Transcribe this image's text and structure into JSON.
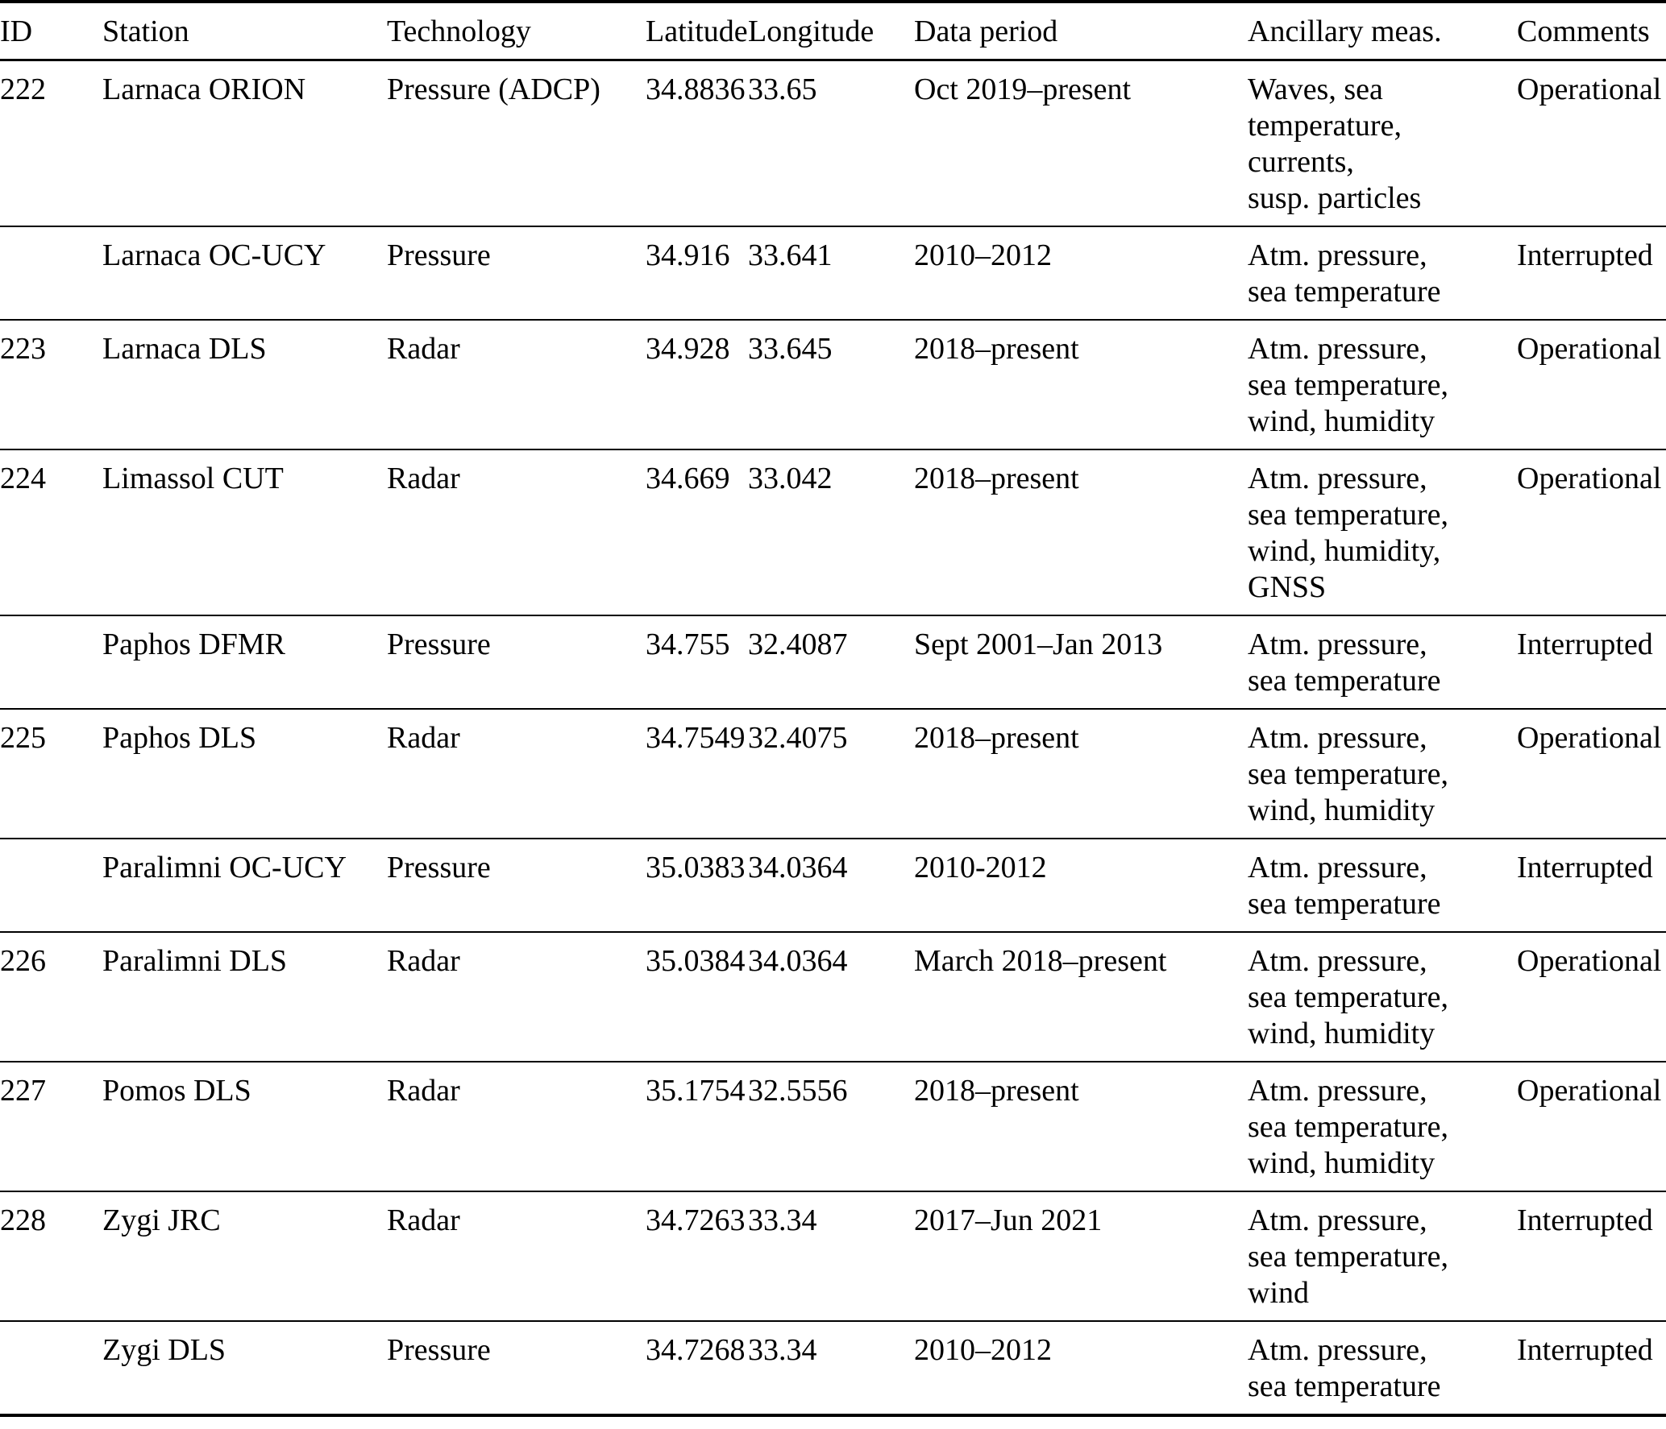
{
  "table": {
    "columns": [
      {
        "label": "ID"
      },
      {
        "label": "Station"
      },
      {
        "label": "Technology"
      },
      {
        "label": "Latitude"
      },
      {
        "label": "Longitude"
      },
      {
        "label": "Data period"
      },
      {
        "label": "Ancillary meas."
      },
      {
        "label": "Comments"
      }
    ],
    "rows": [
      {
        "id": "222",
        "station": "Larnaca ORION",
        "technology": "Pressure (ADCP)",
        "latitude": "34.8836",
        "longitude": "33.65",
        "data_period": "Oct 2019–present",
        "ancillary": "Waves, sea\ntemperature,\ncurrents,\nsusp. particles",
        "comments": "Operational"
      },
      {
        "id": "",
        "station": "Larnaca OC-UCY",
        "technology": "Pressure",
        "latitude": "34.916",
        "longitude": "33.641",
        "data_period": "2010–2012",
        "ancillary": "Atm. pressure,\nsea temperature",
        "comments": "Interrupted"
      },
      {
        "id": "223",
        "station": "Larnaca DLS",
        "technology": "Radar",
        "latitude": "34.928",
        "longitude": "33.645",
        "data_period": "2018–present",
        "ancillary": "Atm. pressure,\nsea temperature,\nwind, humidity",
        "comments": "Operational"
      },
      {
        "id": "224",
        "station": "Limassol CUT",
        "technology": "Radar",
        "latitude": "34.669",
        "longitude": "33.042",
        "data_period": "2018–present",
        "ancillary": "Atm. pressure,\nsea temperature,\nwind, humidity,\nGNSS",
        "comments": "Operational"
      },
      {
        "id": "",
        "station": "Paphos DFMR",
        "technology": "Pressure",
        "latitude": "34.755",
        "longitude": "32.4087",
        "data_period": "Sept 2001–Jan 2013",
        "ancillary": "Atm. pressure,\nsea temperature",
        "comments": "Interrupted"
      },
      {
        "id": "225",
        "station": "Paphos DLS",
        "technology": "Radar",
        "latitude": "34.7549",
        "longitude": "32.4075",
        "data_period": "2018–present",
        "ancillary": "Atm. pressure,\nsea temperature,\nwind, humidity",
        "comments": "Operational"
      },
      {
        "id": "",
        "station": "Paralimni OC-UCY",
        "technology": "Pressure",
        "latitude": "35.0383",
        "longitude": "34.0364",
        "data_period": "2010-2012",
        "ancillary": "Atm. pressure,\nsea temperature",
        "comments": "Interrupted"
      },
      {
        "id": "226",
        "station": "Paralimni DLS",
        "technology": "Radar",
        "latitude": "35.0384",
        "longitude": "34.0364",
        "data_period": "March 2018–present",
        "ancillary": "Atm. pressure,\nsea temperature,\nwind, humidity",
        "comments": "Operational"
      },
      {
        "id": "227",
        "station": "Pomos DLS",
        "technology": "Radar",
        "latitude": "35.1754",
        "longitude": "32.5556",
        "data_period": "2018–present",
        "ancillary": "Atm. pressure,\nsea temperature,\nwind, humidity",
        "comments": "Operational"
      },
      {
        "id": "228",
        "station": "Zygi JRC",
        "technology": "Radar",
        "latitude": "34.7263",
        "longitude": "33.34",
        "data_period": "2017–Jun 2021",
        "ancillary": "Atm. pressure,\nsea temperature,\nwind",
        "comments": "Interrupted"
      },
      {
        "id": "",
        "station": "Zygi DLS",
        "technology": "Pressure",
        "latitude": "34.7268",
        "longitude": "33.34",
        "data_period": "2010–2012",
        "ancillary": "Atm. pressure,\nsea temperature",
        "comments": "Interrupted"
      }
    ]
  }
}
